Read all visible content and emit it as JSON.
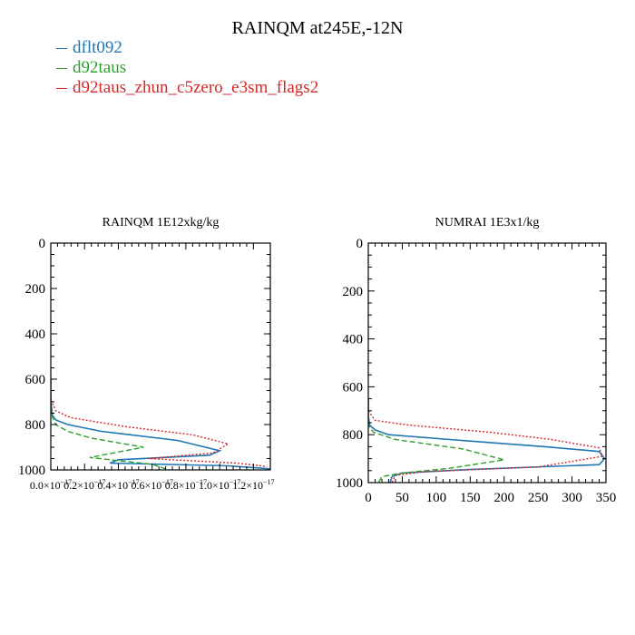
{
  "title": "RAINQM at245E,-12N",
  "colors": {
    "series_1": "#1f77b4",
    "series_2": "#2ca02c",
    "series_3": "#d62728",
    "axes": "#000000"
  },
  "legend": [
    {
      "label": "dflt092",
      "color": "#1f77b4",
      "style": "solid"
    },
    {
      "label": "d92taus",
      "color": "#2ca02c",
      "style": "dashed"
    },
    {
      "label": "d92taus_zhun_c5zero_e3sm_flags2",
      "color": "#d62728",
      "style": "dotted"
    }
  ],
  "chart_data": [
    {
      "type": "line",
      "title": "RAINQM  1E12xkg/kg",
      "xlabel": "",
      "ylabel": "",
      "xlim": [
        0,
        1.3e-17
      ],
      "ylim": [
        1000,
        0
      ],
      "yticks": [
        0,
        200,
        400,
        600,
        800,
        1000
      ],
      "xticks": [
        0.0,
        2e-18,
        4e-18,
        6e-18,
        8e-18,
        1e-17,
        1.2e-17
      ],
      "xtick_labels": [
        "0.0×10",
        "0.2×10",
        "0.4×10",
        "0.6×10",
        "0.8×10",
        "1.0×10",
        "1.2×10"
      ],
      "xtick_exponent": "−17",
      "grid": false,
      "series": [
        {
          "name": "dflt092",
          "x": [
            0,
            0,
            1e-19,
            3e-19,
            1e-18,
            3e-18,
            7.5e-18,
            1e-17,
            9.4e-18,
            4e-18,
            3.5e-18,
            1.05e-17,
            1.3e-17
          ],
          "y": [
            600,
            700,
            760,
            780,
            800,
            830,
            870,
            915,
            935,
            955,
            970,
            982,
            995
          ]
        },
        {
          "name": "d92taus",
          "x": [
            0,
            0,
            1e-19,
            3e-19,
            1e-18,
            2.4e-18,
            5.5e-18,
            2.3e-18,
            6e-18,
            7e-18
          ],
          "y": [
            650,
            730,
            770,
            800,
            830,
            860,
            900,
            945,
            975,
            1000
          ]
        },
        {
          "name": "d92taus_zhun_c5zero_e3sm_flags2",
          "x": [
            0,
            0,
            3e-19,
            1.2e-18,
            4.5e-18,
            8.4e-18,
            1.05e-17,
            9.6e-18,
            5.8e-18,
            1.1e-17,
            1.28e-17
          ],
          "y": [
            580,
            690,
            740,
            770,
            810,
            845,
            885,
            925,
            950,
            970,
            985
          ]
        }
      ]
    },
    {
      "type": "line",
      "title": "NUMRAI  1E3x1/kg",
      "xlabel": "",
      "ylabel": "",
      "xlim": [
        0,
        350
      ],
      "ylim": [
        1000,
        0
      ],
      "yticks": [
        0,
        200,
        400,
        600,
        800,
        1000
      ],
      "xticks": [
        0,
        50,
        100,
        150,
        200,
        250,
        300,
        350
      ],
      "xtick_labels": [
        "0",
        "50",
        "100",
        "150",
        "200",
        "250",
        "300",
        "350"
      ],
      "grid": false,
      "series": [
        {
          "name": "dflt092",
          "x": [
            0,
            0,
            2,
            10,
            30,
            120,
            260,
            340,
            348,
            340,
            150,
            50,
            35,
            32
          ],
          "y": [
            650,
            720,
            760,
            780,
            800,
            820,
            850,
            870,
            900,
            925,
            945,
            960,
            975,
            1000
          ]
        },
        {
          "name": "d92taus",
          "x": [
            0,
            0,
            2,
            8,
            40,
            140,
            200,
            120,
            50,
            20,
            15
          ],
          "y": [
            680,
            740,
            770,
            790,
            820,
            860,
            905,
            940,
            960,
            975,
            1000
          ]
        },
        {
          "name": "d92taus_zhun_c5zero_e3sm_flags2",
          "x": [
            0,
            0,
            10,
            60,
            180,
            270,
            340,
            345,
            250,
            80,
            40,
            35
          ],
          "y": [
            640,
            700,
            740,
            760,
            790,
            820,
            855,
            890,
            935,
            955,
            970,
            1000
          ]
        }
      ]
    }
  ]
}
